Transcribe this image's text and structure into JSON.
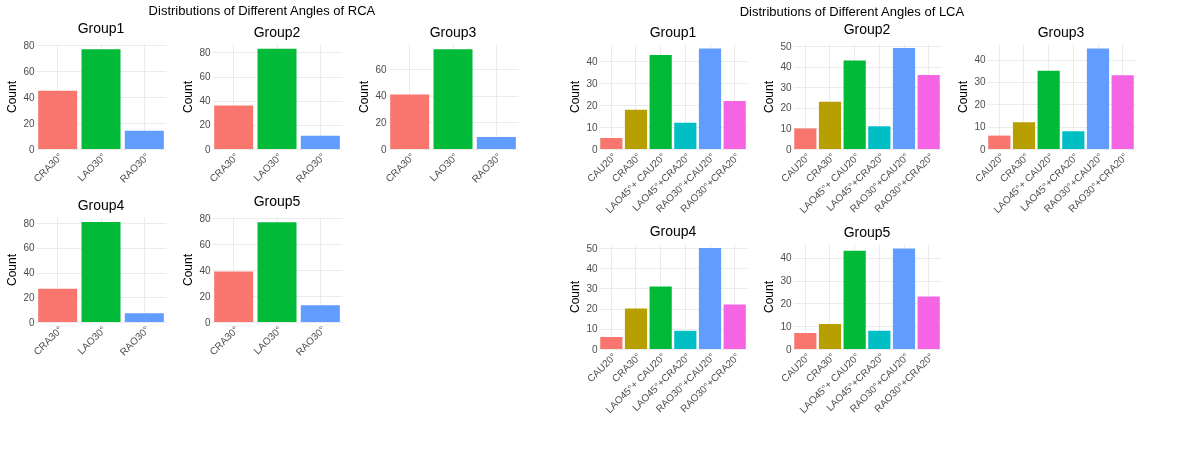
{
  "chart_data": [
    {
      "type": "bar",
      "title": "Group1",
      "annotations": [
        "Distributions of Different Angles of RCA"
      ],
      "categories": [
        "CRA30°",
        "LAO30°",
        "RAO30°"
      ],
      "values": [
        45,
        77,
        14
      ],
      "colors": [
        "#f8766d",
        "#00ba38",
        "#619cff"
      ],
      "ylabel": "Count",
      "ylim": [
        0,
        81
      ],
      "yticks": [
        0,
        20,
        40,
        60,
        80
      ],
      "grid": true
    },
    {
      "type": "bar",
      "title": "Group2",
      "categories": [
        "CRA30°",
        "LAO30°",
        "RAO30°"
      ],
      "values": [
        36,
        83,
        11
      ],
      "colors": [
        "#f8766d",
        "#00ba38",
        "#619cff"
      ],
      "ylabel": "Count",
      "ylim": [
        0,
        87
      ],
      "yticks": [
        0,
        20,
        40,
        60,
        80
      ],
      "grid": true
    },
    {
      "type": "bar",
      "title": "Group3",
      "categories": [
        "CRA30°",
        "LAO30°",
        "RAO30°"
      ],
      "values": [
        41,
        75,
        9
      ],
      "colors": [
        "#f8766d",
        "#00ba38",
        "#619cff"
      ],
      "ylabel": "Count",
      "ylim": [
        0,
        79
      ],
      "yticks": [
        0,
        20,
        40,
        60
      ],
      "grid": true
    },
    {
      "type": "bar",
      "title": "Group4",
      "categories": [
        "CRA30°",
        "LAO30°",
        "RAO30°"
      ],
      "values": [
        27,
        81,
        7
      ],
      "colors": [
        "#f8766d",
        "#00ba38",
        "#619cff"
      ],
      "ylabel": "Count",
      "ylim": [
        0,
        85
      ],
      "yticks": [
        0,
        20,
        40,
        60,
        80
      ],
      "grid": true
    },
    {
      "type": "bar",
      "title": "Group5",
      "categories": [
        "CRA30°",
        "LAO30°",
        "RAO30°"
      ],
      "values": [
        39,
        77,
        13
      ],
      "colors": [
        "#f8766d",
        "#00ba38",
        "#619cff"
      ],
      "ylabel": "Count",
      "ylim": [
        0,
        81
      ],
      "yticks": [
        0,
        20,
        40,
        60,
        80
      ],
      "grid": true
    },
    {
      "type": "bar",
      "title": "Group1",
      "annotations": [
        "Distributions of Different Angles of LCA"
      ],
      "categories": [
        "CAU20°",
        "CRA30°",
        "LAO45°+ CAU20°",
        "LAO45°+CRA20°",
        "RAO30°+CAU20°",
        "RAO30°+CRA20°"
      ],
      "values": [
        5,
        18,
        43,
        12,
        46,
        22
      ],
      "colors": [
        "#f8766d",
        "#b79f00",
        "#00ba38",
        "#00bfc4",
        "#619cff",
        "#f564e3"
      ],
      "ylabel": "Count",
      "ylim": [
        0,
        48
      ],
      "yticks": [
        0,
        10,
        20,
        30,
        40
      ],
      "grid": true
    },
    {
      "type": "bar",
      "title": "Group2",
      "categories": [
        "CAU20°",
        "CRA30°",
        "LAO45°+ CAU20°",
        "LAO45°+CRA20°",
        "RAO30°+CAU20°",
        "RAO30°+CRA20°"
      ],
      "values": [
        10,
        23,
        43,
        11,
        49,
        36
      ],
      "colors": [
        "#f8766d",
        "#b79f00",
        "#00ba38",
        "#00bfc4",
        "#619cff",
        "#f564e3"
      ],
      "ylabel": "Count",
      "ylim": [
        0,
        51
      ],
      "yticks": [
        0,
        10,
        20,
        30,
        40,
        50
      ],
      "grid": true
    },
    {
      "type": "bar",
      "title": "Group3",
      "categories": [
        "CAU20°",
        "CRA30°",
        "LAO45°+ CAU20°",
        "LAO45°+CRA20°",
        "RAO30°+CAU20°",
        "RAO30°+CRA20°"
      ],
      "values": [
        6,
        12,
        35,
        8,
        45,
        33
      ],
      "colors": [
        "#f8766d",
        "#b79f00",
        "#00ba38",
        "#00bfc4",
        "#619cff",
        "#f564e3"
      ],
      "ylabel": "Count",
      "ylim": [
        0,
        47
      ],
      "yticks": [
        0,
        10,
        20,
        30,
        40
      ],
      "grid": true
    },
    {
      "type": "bar",
      "title": "Group4",
      "categories": [
        "CAU20°",
        "CRA30°",
        "LAO45°+ CAU20°",
        "LAO45°+CRA20°",
        "RAO30°+CAU20°",
        "RAO30°+CRA20°"
      ],
      "values": [
        6,
        20,
        31,
        9,
        50,
        22
      ],
      "colors": [
        "#f8766d",
        "#b79f00",
        "#00ba38",
        "#00bfc4",
        "#619cff",
        "#f564e3"
      ],
      "ylabel": "Count",
      "ylim": [
        0,
        52
      ],
      "yticks": [
        0,
        10,
        20,
        30,
        40,
        50
      ],
      "grid": true
    },
    {
      "type": "bar",
      "title": "Group5",
      "categories": [
        "CAU20°",
        "CRA30°",
        "LAO45°+ CAU20°",
        "LAO45°+CRA20°",
        "RAO30°+CAU20°",
        "RAO30°+CRA20°"
      ],
      "values": [
        7,
        11,
        43,
        8,
        44,
        23
      ],
      "colors": [
        "#f8766d",
        "#b79f00",
        "#00ba38",
        "#00bfc4",
        "#619cff",
        "#f564e3"
      ],
      "ylabel": "Count",
      "ylim": [
        0,
        46
      ],
      "yticks": [
        0,
        10,
        20,
        30,
        40
      ],
      "grid": true
    }
  ]
}
